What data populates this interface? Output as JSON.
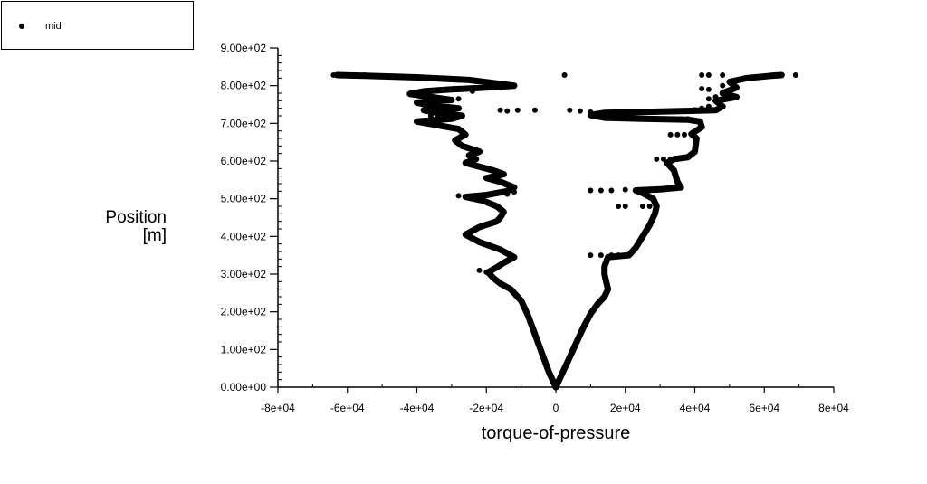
{
  "legend": {
    "entries": [
      {
        "label": "mid",
        "marker": "filled-circle"
      }
    ]
  },
  "chart_data": {
    "type": "scatter",
    "title": "",
    "xlabel": "torque-of-pressure",
    "ylabel_line1": "Position",
    "ylabel_line2": "[m]",
    "xlim": [
      -80000,
      80000
    ],
    "ylim": [
      0,
      900
    ],
    "x_ticks": [
      -80000,
      -60000,
      -40000,
      -20000,
      0,
      20000,
      40000,
      60000,
      80000
    ],
    "x_tick_labels": [
      "-8e+04",
      "-6e+04",
      "-4e+04",
      "-2e+04",
      "0",
      "2e+04",
      "4e+04",
      "6e+04",
      "8e+04"
    ],
    "y_ticks": [
      0,
      100,
      200,
      300,
      400,
      500,
      600,
      700,
      800,
      900
    ],
    "y_tick_labels": [
      "0.00e+00",
      "1.00e+02",
      "2.00e+02",
      "3.00e+02",
      "4.00e+02",
      "5.00e+02",
      "6.00e+02",
      "7.00e+02",
      "8.00e+02",
      "9.00e+02"
    ],
    "grid": false,
    "legend_position": "top-left",
    "series": [
      {
        "name": "mid",
        "color": "#000000",
        "left_branch": [
          [
            0,
            0
          ],
          [
            -2000,
            40
          ],
          [
            -4000,
            90
          ],
          [
            -6000,
            140
          ],
          [
            -8000,
            190
          ],
          [
            -10000,
            230
          ],
          [
            -13000,
            260
          ],
          [
            -16000,
            275
          ],
          [
            -18000,
            290
          ],
          [
            -19500,
            305
          ],
          [
            -17000,
            318
          ],
          [
            -15000,
            330
          ],
          [
            -12000,
            345
          ],
          [
            -16000,
            365
          ],
          [
            -22000,
            385
          ],
          [
            -26000,
            405
          ],
          [
            -22000,
            425
          ],
          [
            -17000,
            440
          ],
          [
            -16000,
            450
          ],
          [
            -15000,
            465
          ],
          [
            -17000,
            480
          ],
          [
            -21000,
            495
          ],
          [
            -26000,
            505
          ],
          [
            -20000,
            510
          ],
          [
            -14000,
            520
          ],
          [
            -12000,
            530
          ],
          [
            -16000,
            545
          ],
          [
            -20000,
            555
          ],
          [
            -15000,
            565
          ],
          [
            -18000,
            575
          ],
          [
            -22000,
            585
          ],
          [
            -26000,
            595
          ],
          [
            -23000,
            605
          ],
          [
            -25000,
            615
          ],
          [
            -22000,
            625
          ],
          [
            -27000,
            640
          ],
          [
            -29000,
            655
          ],
          [
            -26000,
            670
          ],
          [
            -28000,
            685
          ],
          [
            -34000,
            695
          ],
          [
            -40000,
            705
          ],
          [
            -30000,
            712
          ],
          [
            -27000,
            720
          ],
          [
            -34000,
            728
          ],
          [
            -38000,
            735
          ],
          [
            -28000,
            740
          ],
          [
            -36000,
            748
          ],
          [
            -40000,
            755
          ],
          [
            -30000,
            762
          ],
          [
            -36000,
            770
          ],
          [
            -42000,
            778
          ],
          [
            -38000,
            785
          ],
          [
            -30000,
            790
          ],
          [
            -20000,
            795
          ],
          [
            -12000,
            800
          ],
          [
            -25000,
            815
          ],
          [
            -40000,
            822
          ],
          [
            -55000,
            826
          ],
          [
            -63000,
            828
          ]
        ],
        "right_branch": [
          [
            0,
            0
          ],
          [
            2000,
            40
          ],
          [
            4000,
            80
          ],
          [
            6000,
            120
          ],
          [
            8000,
            160
          ],
          [
            10000,
            195
          ],
          [
            12000,
            220
          ],
          [
            14000,
            240
          ],
          [
            15000,
            260
          ],
          [
            14500,
            280
          ],
          [
            14000,
            300
          ],
          [
            14000,
            320
          ],
          [
            15000,
            345
          ],
          [
            21000,
            350
          ],
          [
            23000,
            370
          ],
          [
            25000,
            400
          ],
          [
            27000,
            430
          ],
          [
            28500,
            460
          ],
          [
            29000,
            480
          ],
          [
            28000,
            500
          ],
          [
            25000,
            515
          ],
          [
            23000,
            522
          ],
          [
            30000,
            525
          ],
          [
            36000,
            530
          ],
          [
            35000,
            545
          ],
          [
            34000,
            575
          ],
          [
            32000,
            595
          ],
          [
            34000,
            605
          ],
          [
            38000,
            610
          ],
          [
            40000,
            625
          ],
          [
            40500,
            660
          ],
          [
            39000,
            672
          ],
          [
            42000,
            690
          ],
          [
            41500,
            705
          ],
          [
            38000,
            710
          ],
          [
            25000,
            712
          ],
          [
            14000,
            715
          ],
          [
            10000,
            722
          ],
          [
            14000,
            728
          ],
          [
            46000,
            735
          ],
          [
            48000,
            745
          ],
          [
            46000,
            760
          ],
          [
            52000,
            770
          ],
          [
            48000,
            780
          ],
          [
            52000,
            795
          ],
          [
            50000,
            810
          ],
          [
            55000,
            820
          ],
          [
            62000,
            826
          ],
          [
            65000,
            828
          ]
        ],
        "isolated_points": [
          [
            -64000,
            828
          ],
          [
            -61000,
            828
          ],
          [
            -58000,
            828
          ],
          [
            -55000,
            828
          ],
          [
            -16000,
            735
          ],
          [
            -14000,
            733
          ],
          [
            -11000,
            735
          ],
          [
            -6000,
            735
          ],
          [
            2500,
            828
          ],
          [
            4000,
            735
          ],
          [
            7000,
            733
          ],
          [
            10000,
            730
          ],
          [
            10000,
            522
          ],
          [
            13000,
            522
          ],
          [
            16000,
            522
          ],
          [
            20000,
            524
          ],
          [
            18000,
            480
          ],
          [
            20000,
            480
          ],
          [
            25000,
            480
          ],
          [
            27000,
            480
          ],
          [
            10000,
            350
          ],
          [
            13000,
            350
          ],
          [
            16000,
            350
          ],
          [
            18000,
            350
          ],
          [
            29000,
            605
          ],
          [
            31000,
            605
          ],
          [
            33000,
            605
          ],
          [
            33000,
            670
          ],
          [
            35000,
            670
          ],
          [
            37000,
            670
          ],
          [
            36000,
            712
          ],
          [
            38000,
            712
          ],
          [
            40000,
            736
          ],
          [
            42000,
            740
          ],
          [
            44000,
            745
          ],
          [
            44000,
            765
          ],
          [
            46000,
            770
          ],
          [
            42000,
            792
          ],
          [
            44000,
            790
          ],
          [
            48000,
            800
          ],
          [
            51000,
            800
          ],
          [
            42000,
            828
          ],
          [
            44000,
            828
          ],
          [
            48000,
            828
          ],
          [
            69000,
            828
          ],
          [
            -35000,
            765
          ],
          [
            -32000,
            760
          ],
          [
            -36000,
            720
          ],
          [
            -34000,
            718
          ],
          [
            -28000,
            765
          ],
          [
            -24000,
            785
          ],
          [
            -22000,
            310
          ],
          [
            -20000,
            305
          ],
          [
            -28000,
            508
          ],
          [
            -26000,
            505
          ],
          [
            -12000,
            518
          ],
          [
            -14000,
            512
          ]
        ]
      }
    ]
  }
}
